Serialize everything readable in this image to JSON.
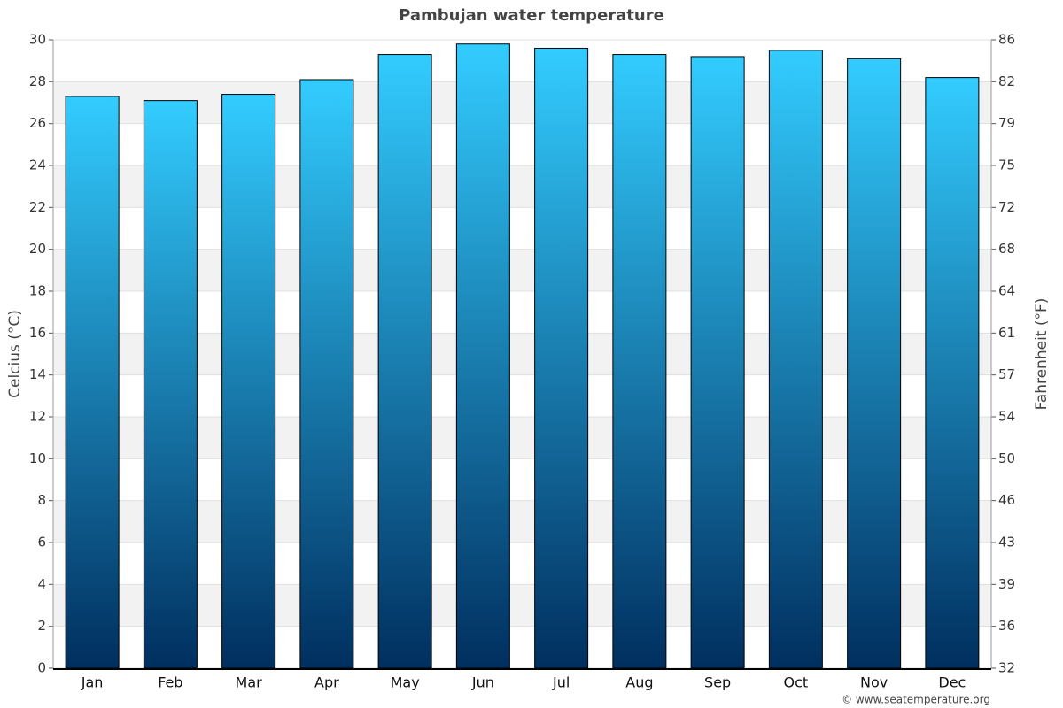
{
  "chart_data": {
    "type": "bar",
    "title": "Pambujan water temperature",
    "y_label": "Celcius (°C)",
    "y2_label": "Fahrenheit (°F)",
    "credit": "© www.seatemperature.org",
    "categories": [
      "Jan",
      "Feb",
      "Mar",
      "Apr",
      "May",
      "Jun",
      "Jul",
      "Aug",
      "Sep",
      "Oct",
      "Nov",
      "Dec"
    ],
    "values": [
      27.3,
      27.1,
      27.4,
      28.1,
      29.3,
      29.8,
      29.6,
      29.3,
      29.2,
      29.5,
      29.1,
      28.2
    ],
    "gradient": [
      "#33ccff",
      "#002f5f"
    ],
    "ylim": [
      0,
      30
    ],
    "yticks": [
      0,
      2,
      4,
      6,
      8,
      10,
      12,
      14,
      16,
      18,
      20,
      22,
      24,
      26,
      28,
      30
    ],
    "y2lim": [
      32,
      86
    ],
    "y2ticks": [
      {
        "value": 32,
        "label": "32"
      },
      {
        "value": 35.6,
        "label": "36"
      },
      {
        "value": 39.2,
        "label": "39"
      },
      {
        "value": 42.8,
        "label": "43"
      },
      {
        "value": 46.4,
        "label": "46"
      },
      {
        "value": 50,
        "label": "50"
      },
      {
        "value": 53.6,
        "label": "54"
      },
      {
        "value": 57.2,
        "label": "57"
      },
      {
        "value": 60.8,
        "label": "61"
      },
      {
        "value": 64.4,
        "label": "64"
      },
      {
        "value": 68,
        "label": "68"
      },
      {
        "value": 71.6,
        "label": "72"
      },
      {
        "value": 75.2,
        "label": "75"
      },
      {
        "value": 78.8,
        "label": "79"
      },
      {
        "value": 82.4,
        "label": "82"
      },
      {
        "value": 86,
        "label": "86"
      }
    ],
    "grid": true
  }
}
